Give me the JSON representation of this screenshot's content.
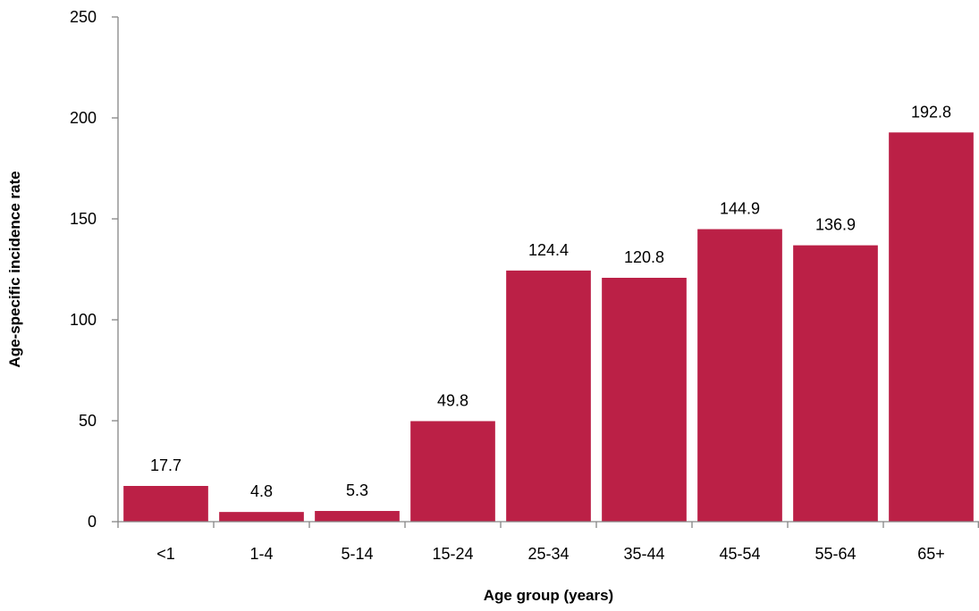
{
  "chart_data": {
    "type": "bar",
    "title": "",
    "xlabel": "Age group (years)",
    "ylabel": "Age-specific incidence rate",
    "categories": [
      "<1",
      "1-4",
      "5-14",
      "15-24",
      "25-34",
      "35-44",
      "45-54",
      "55-64",
      "65+"
    ],
    "values": [
      17.7,
      4.8,
      5.3,
      49.8,
      124.4,
      120.8,
      144.9,
      136.9,
      192.8
    ],
    "data_labels": [
      "17.7",
      "4.8",
      "5.3",
      "49.8",
      "124.4",
      "120.8",
      "144.9",
      "136.9",
      "192.8"
    ],
    "ylim": [
      0,
      250
    ],
    "yticks": [
      0,
      50,
      100,
      150,
      200,
      250
    ],
    "grid": false,
    "legend": "none",
    "bar_color": "#bb2046"
  }
}
